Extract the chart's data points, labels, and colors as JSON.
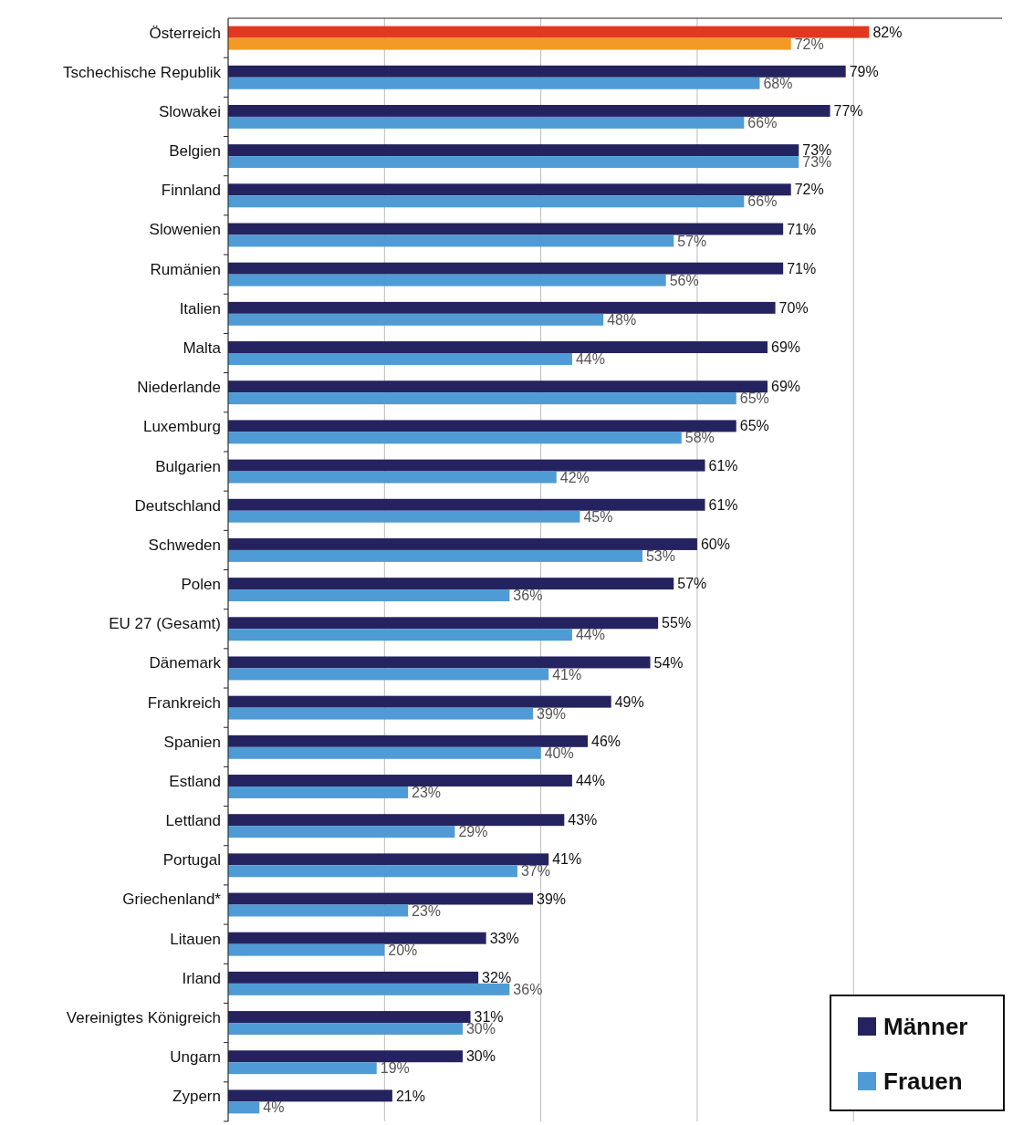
{
  "chart_data": {
    "type": "bar",
    "orientation": "horizontal",
    "categories": [
      "Österreich",
      "Tschechische Republik",
      "Slowakei",
      "Belgien",
      "Finnland",
      "Slowenien",
      "Rumänien",
      "Italien",
      "Malta",
      "Niederlande",
      "Luxemburg",
      "Bulgarien",
      "Deutschland",
      "Schweden",
      "Polen",
      "EU 27 (Gesamt)",
      "Dänemark",
      "Frankreich",
      "Spanien",
      "Estland",
      "Lettland",
      "Portugal",
      "Griechenland*",
      "Litauen",
      "Irland",
      "Vereinigtes Königreich",
      "Ungarn",
      "Zypern"
    ],
    "series": [
      {
        "name": "Männer",
        "color": "#25235f",
        "colors": [
          "#e2381f",
          "#25235f",
          "#25235f",
          "#25235f",
          "#25235f",
          "#25235f",
          "#25235f",
          "#25235f",
          "#25235f",
          "#25235f",
          "#25235f",
          "#25235f",
          "#25235f",
          "#25235f",
          "#25235f",
          "#25235f",
          "#25235f",
          "#25235f",
          "#25235f",
          "#25235f",
          "#25235f",
          "#25235f",
          "#25235f",
          "#25235f",
          "#25235f",
          "#25235f",
          "#25235f",
          "#25235f"
        ],
        "values": [
          82,
          79,
          77,
          73,
          72,
          71,
          71,
          70,
          69,
          69,
          65,
          61,
          61,
          60,
          57,
          55,
          54,
          49,
          46,
          44,
          43,
          41,
          39,
          33,
          32,
          31,
          30,
          21
        ],
        "value_labels": [
          "82%",
          "79%",
          "77%",
          "73%",
          "72%",
          "71%",
          "71%",
          "70%",
          "69%",
          "69%",
          "65%",
          "61%",
          "61%",
          "60%",
          "57%",
          "55%",
          "54%",
          "49%",
          "46%",
          "44%",
          "43%",
          "41%",
          "39%",
          "33%",
          "32%",
          "31%",
          "30%",
          "21%"
        ]
      },
      {
        "name": "Frauen",
        "color": "#4f9bd6",
        "colors": [
          "#f29a24",
          "#4f9bd6",
          "#4f9bd6",
          "#4f9bd6",
          "#4f9bd6",
          "#4f9bd6",
          "#4f9bd6",
          "#4f9bd6",
          "#4f9bd6",
          "#4f9bd6",
          "#4f9bd6",
          "#4f9bd6",
          "#4f9bd6",
          "#4f9bd6",
          "#4f9bd6",
          "#4f9bd6",
          "#4f9bd6",
          "#4f9bd6",
          "#4f9bd6",
          "#4f9bd6",
          "#4f9bd6",
          "#4f9bd6",
          "#4f9bd6",
          "#4f9bd6",
          "#4f9bd6",
          "#4f9bd6",
          "#4f9bd6",
          "#4f9bd6"
        ],
        "values": [
          72,
          68,
          66,
          73,
          66,
          57,
          56,
          48,
          44,
          65,
          58,
          42,
          45,
          53,
          36,
          44,
          41,
          39,
          40,
          23,
          29,
          37,
          23,
          20,
          36,
          30,
          19,
          4
        ],
        "value_labels": [
          "72%",
          "68%",
          "66%",
          "73%",
          "66%",
          "57%",
          "56%",
          "48%",
          "44%",
          "65%",
          "58%",
          "42%",
          "45%",
          "53%",
          "36%",
          "44%",
          "41%",
          "39%",
          "40%",
          "23%",
          "29%",
          "37%",
          "23%",
          "20%",
          "36%",
          "30%",
          "19%",
          "4%"
        ]
      }
    ],
    "xlim": [
      0,
      99
    ],
    "xticks": [
      {
        "value": 0,
        "label": null
      },
      {
        "value": 20,
        "label": null
      },
      {
        "value": 40,
        "label": null
      },
      {
        "value": 60,
        "label": null
      },
      {
        "value": 80,
        "label": null
      }
    ],
    "tick_labels": "y",
    "grid": "x",
    "legend": "bottom right"
  }
}
